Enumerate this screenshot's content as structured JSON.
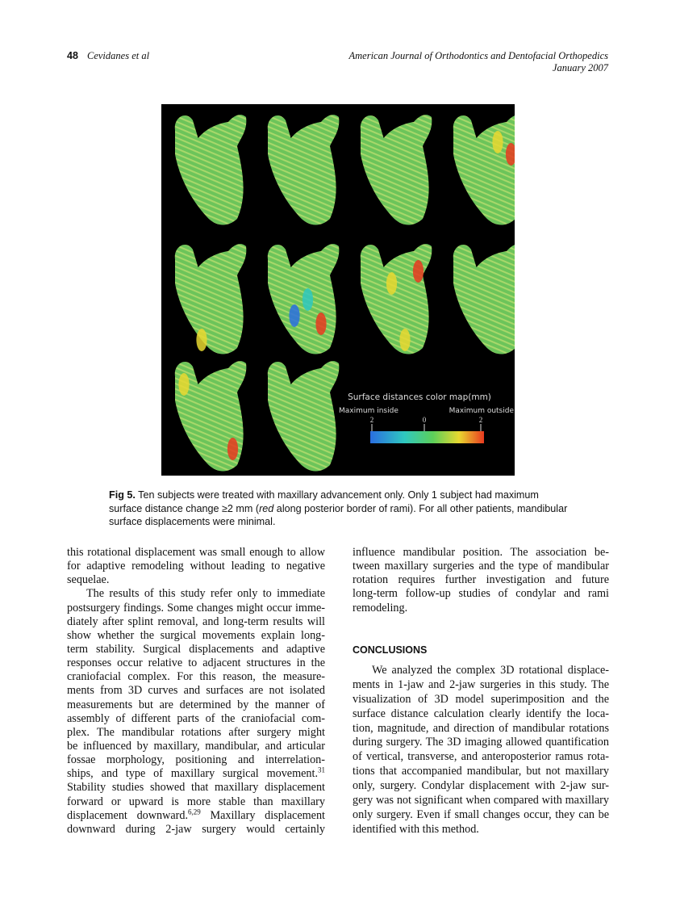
{
  "header": {
    "page_number": "48",
    "author": "Cevidanes et al",
    "journal": "American Journal of Orthodontics and Dentofacial Orthopedics",
    "date": "January 2007"
  },
  "figure": {
    "legend_title": "Surface distances color map(mm)",
    "left_label": "Maximum inside",
    "right_label": "Maximum outside",
    "ticks": [
      "2",
      "0",
      "2"
    ],
    "colors": [
      "#2a6ee0",
      "#2fc8c0",
      "#5ccf5a",
      "#e8d830",
      "#e83a20"
    ],
    "panel_count": 10
  },
  "caption": {
    "label": "Fig 5.",
    "text1": " Ten subjects were treated with maxillary advancement only. Only 1 subject had maximum surface distance change ≥2 mm (",
    "italic": "red",
    "text2": " along posterior border of rami). For all other patients, mandibular surface displacements were minimal."
  },
  "left_column": [
    "this rotational displacement was small enough to allow",
    "for adaptive remodeling without leading to negative",
    "sequelae.",
    "The results of this study refer only to immediate",
    "postsurgery findings. Some changes might occur imme-",
    "diately after splint removal, and long-term results will",
    "show whether the surgical movements explain long-",
    "term stability. Surgical displacements and adaptive",
    "responses occur relative to adjacent structures in the",
    "craniofacial complex. For this reason, the measure-",
    "ments from 3D curves and surfaces are not isolated",
    "measurements but are determined by the manner of",
    "assembly of different parts of the craniofacial com-",
    "plex. The mandibular rotations after surgery might",
    "be influenced by maxillary, mandibular, and articular",
    "fossae morphology, positioning and interrelation-",
    "ships, and type of maxillary surgical movement.",
    "Stability studies showed that maxillary displacement",
    "forward or upward is more stable than maxillary",
    "displacement downward.",
    "downward during 2-jaw surgery would certainly"
  ],
  "refs": {
    "r1": "31",
    "r2": "6,29",
    "after_r2": " Maxillary displacement"
  },
  "right_column_top": [
    "influence mandibular position. The association be-",
    "tween maxillary surgeries and the type of mandibular",
    "rotation requires further investigation and future",
    "long-term follow-up studies of condylar and rami",
    "remodeling."
  ],
  "conclusions_heading": "CONCLUSIONS",
  "conclusions": [
    "We analyzed the complex 3D rotational displace-",
    "ments in 1-jaw and 2-jaw surgeries in this study. The",
    "visualization of 3D model superimposition and the",
    "surface distance calculation clearly identify the loca-",
    "tion, magnitude, and direction of mandibular rotations",
    "during surgery. The 3D imaging allowed quantification",
    "of vertical, transverse, and anteroposterior ramus rota-",
    "tions that accompanied mandibular, but not maxillary",
    "only, surgery. Condylar displacement with 2-jaw sur-",
    "gery was not significant when compared with maxillary",
    "only surgery. Even if small changes occur, they can be",
    "identified with this method."
  ]
}
